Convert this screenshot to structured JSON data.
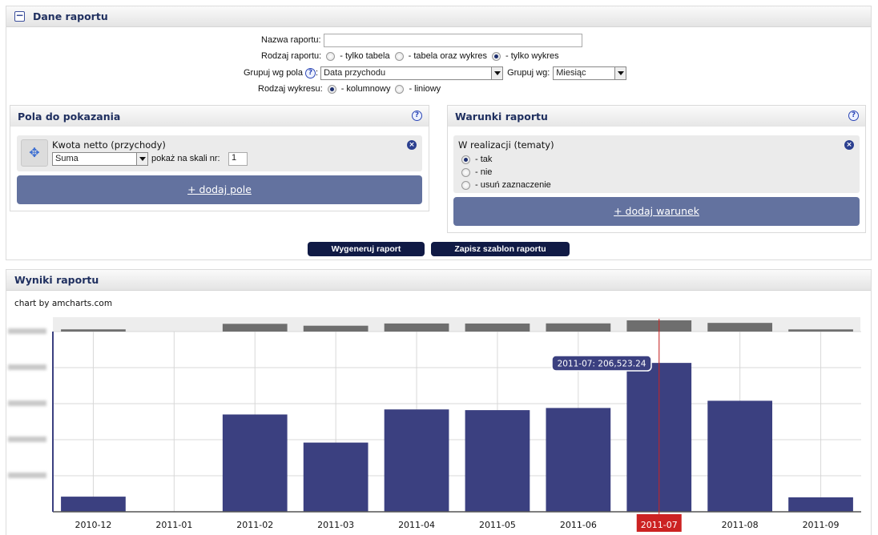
{
  "report_data": {
    "title": "Dane raportu",
    "name_label": "Nazwa raportu:",
    "name_value": "",
    "type_label": "Rodzaj raportu:",
    "type_options": [
      " - tylko tabela",
      " - tabela oraz wykres",
      " - tylko wykres"
    ],
    "type_selected": 2,
    "group_label": "Grupuj wg pola",
    "group_help": "?",
    "group_colon": ":",
    "group_field_value": "Data przychodu",
    "group_by_label": "Grupuj wg:",
    "group_by_value": "Miesiąc",
    "chart_type_label": "Rodzaj wykresu:",
    "chart_type_options": [
      " - kolumnowy",
      " - liniowy"
    ],
    "chart_type_selected": 0
  },
  "fields_panel": {
    "title": "Pola do pokazania",
    "help": "?",
    "field_name": "Kwota netto (przychody)",
    "agg_value": "Suma",
    "scale_label": "pokaż na skali nr:",
    "scale_value": "1",
    "remove_glyph": "×",
    "drag_glyph": "✥",
    "add_label": "+ dodaj pole"
  },
  "conditions_panel": {
    "title": "Warunki raportu",
    "help": "?",
    "condition_name": "W realizacji (tematy)",
    "options": [
      " - tak",
      " - nie",
      " - usuń zaznaczenie"
    ],
    "selected": 0,
    "remove_glyph": "×",
    "add_label": "+ dodaj warunek"
  },
  "actions": {
    "generate": "Wygeneruj raport",
    "save_template": "Zapisz szablon raportu"
  },
  "results": {
    "title": "Wyniki raportu",
    "credit": "chart by amcharts.com",
    "tooltip": "2011-07: 206,523.24"
  },
  "colors": {
    "bar": "#3b4080",
    "preview_bar": "#6e6e6e",
    "cursor": "#cc2222",
    "header_text": "#1f2f5f",
    "button_bg": "#63729f",
    "dark_button_bg": "#101a45"
  },
  "chart_data": {
    "type": "bar",
    "categories": [
      "2010-12",
      "2011-01",
      "2011-02",
      "2011-03",
      "2011-04",
      "2011-05",
      "2011-06",
      "2011-07",
      "2011-08",
      "2011-09"
    ],
    "values": [
      21000,
      0,
      135000,
      96000,
      142000,
      141000,
      144000,
      206523.24,
      154000,
      20000
    ],
    "highlighted_category": "2011-07",
    "ylim": [
      0,
      250000
    ],
    "grid": true,
    "y_tick_labels_visible": false
  }
}
